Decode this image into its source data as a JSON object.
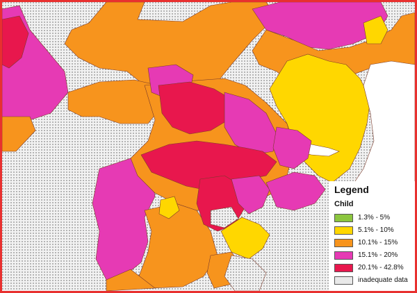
{
  "legend": {
    "title": "Legend",
    "subtitle": "Child",
    "items": [
      {
        "label": "1.3% - 5%",
        "color": "#8cc63f"
      },
      {
        "label": "5.1% - 10%",
        "color": "#ffd700"
      },
      {
        "label": "10.1% - 15%",
        "color": "#f7941d"
      },
      {
        "label": "15.1% - 20%",
        "color": "#e63ab4"
      },
      {
        "label": "20.1% - 42.8%",
        "color": "#e8174d"
      },
      {
        "label": "inadequate data",
        "color": "#e9e9e9"
      }
    ]
  },
  "colors": {
    "frame": "#e8302f",
    "boundary": "#7a3a2a",
    "water": "#ffffff"
  }
}
